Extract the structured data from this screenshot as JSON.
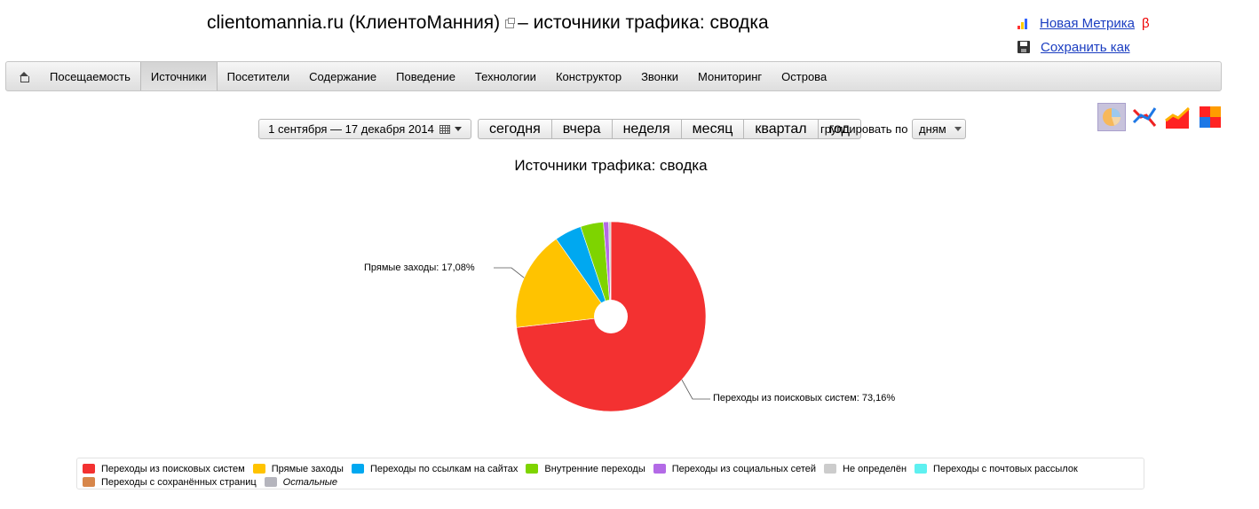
{
  "header": {
    "title": "clientomannia.ru (КлиентоМанния)",
    "title_suffix": "– источники трафика: сводка",
    "new_metrika_label": "Новая Метрика",
    "beta_label": "β",
    "save_as_label": "Сохранить как"
  },
  "nav": {
    "items": [
      {
        "label": "Посещаемость"
      },
      {
        "label": "Источники",
        "active": true
      },
      {
        "label": "Посетители"
      },
      {
        "label": "Содержание"
      },
      {
        "label": "Поведение"
      },
      {
        "label": "Технологии"
      },
      {
        "label": "Конструктор"
      },
      {
        "label": "Звонки"
      },
      {
        "label": "Мониторинг"
      },
      {
        "label": "Острова"
      }
    ]
  },
  "toolbar": {
    "date_range": "1 сентября — 17 декабря 2014",
    "periods": [
      "сегодня",
      "вчера",
      "неделя",
      "месяц",
      "квартал",
      "год"
    ],
    "group_label": "группировать по",
    "group_value": "дням"
  },
  "chart_types": [
    "pie-chart-icon",
    "line-chart-icon",
    "area-chart-icon",
    "heatmap-icon"
  ],
  "chart_data": {
    "type": "pie",
    "title": "Источники трафика: сводка",
    "series": [
      {
        "name": "Переходы из поисковых систем",
        "value": 73.16,
        "color": "#f33131",
        "label": "Переходы из поисковых систем: 73,16%"
      },
      {
        "name": "Прямые заходы",
        "value": 17.08,
        "color": "#ffc300",
        "label": "Прямые заходы: 17,08%"
      },
      {
        "name": "Переходы по ссылкам на сайтах",
        "value": 4.6,
        "color": "#00a8f0",
        "label": ""
      },
      {
        "name": "Внутренние переходы",
        "value": 3.9,
        "color": "#7ed400",
        "label": ""
      },
      {
        "name": "Переходы из социальных сетей",
        "value": 0.9,
        "color": "#b36ae6",
        "label": ""
      },
      {
        "name": "Не определён",
        "value": 0.36,
        "color": "#cccccc",
        "label": ""
      },
      {
        "name": "Переходы с почтовых рассылок",
        "value": 0,
        "color": "#5ef0f0",
        "label": ""
      },
      {
        "name": "Переходы с сохранённых страниц",
        "value": 0,
        "color": "#d7864a",
        "label": ""
      },
      {
        "name": "Остальные",
        "value": 0,
        "color": "#b5b5bd",
        "label": "",
        "italic": true
      }
    ],
    "legend_position": "bottom"
  }
}
